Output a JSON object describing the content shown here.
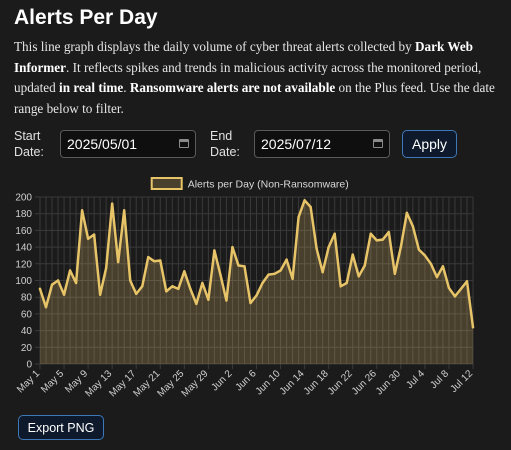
{
  "header": {
    "title": "Alerts Per Day",
    "desc_1": "This line graph displays the daily volume of cyber threat alerts collected by ",
    "desc_bold_1": "Dark Web Informer",
    "desc_2": ". It reflects spikes and trends in malicious activity across the monitored period, updated ",
    "desc_bold_2": "in real time",
    "desc_3": ". ",
    "desc_bold_3": "Ransomware alerts are not available",
    "desc_4": " on the Plus feed. Use the date range below to filter."
  },
  "filters": {
    "start_label_1": "Start",
    "start_label_2": "Date:",
    "start_value": "2025/05/01",
    "end_label_1": "End",
    "end_label_2": "Date:",
    "end_value": "2025/07/12",
    "apply_label": "Apply"
  },
  "export_label": "Export PNG",
  "colors": {
    "background": "#1b1b1b",
    "line": "#e8c468",
    "fill": "rgba(232,196,104,0.22)",
    "grid": "#3a3a3a",
    "button_border": "#3e78b8"
  },
  "icons": [
    "calendar-icon"
  ],
  "chart_data": {
    "type": "line",
    "title": "",
    "legend": "Alerts per Day (Non-Ransomware)",
    "legend_position": "top-center",
    "grid": true,
    "ylim": [
      0,
      200
    ],
    "yticks": [
      0,
      20,
      40,
      60,
      80,
      100,
      120,
      140,
      160,
      180,
      200
    ],
    "start_date": "2025-05-01",
    "tick_labels": [
      "May 1",
      "May 5",
      "May 9",
      "May 13",
      "May 17",
      "May 21",
      "May 25",
      "May 29",
      "Jun 2",
      "Jun 6",
      "Jun 10",
      "Jun 14",
      "Jun 18",
      "Jun 22",
      "Jun 26",
      "Jun 30",
      "Jul 4",
      "Jul 8",
      "Jul 12"
    ],
    "x": [
      "May 1",
      "May 2",
      "May 3",
      "May 4",
      "May 5",
      "May 6",
      "May 7",
      "May 8",
      "May 9",
      "May 10",
      "May 11",
      "May 12",
      "May 13",
      "May 14",
      "May 15",
      "May 16",
      "May 17",
      "May 18",
      "May 19",
      "May 20",
      "May 21",
      "May 22",
      "May 23",
      "May 24",
      "May 25",
      "May 26",
      "May 27",
      "May 28",
      "May 29",
      "May 30",
      "May 31",
      "Jun 1",
      "Jun 2",
      "Jun 3",
      "Jun 4",
      "Jun 5",
      "Jun 6",
      "Jun 7",
      "Jun 8",
      "Jun 9",
      "Jun 10",
      "Jun 11",
      "Jun 12",
      "Jun 13",
      "Jun 14",
      "Jun 15",
      "Jun 16",
      "Jun 17",
      "Jun 18",
      "Jun 19",
      "Jun 20",
      "Jun 21",
      "Jun 22",
      "Jun 23",
      "Jun 24",
      "Jun 25",
      "Jun 26",
      "Jun 27",
      "Jun 28",
      "Jun 29",
      "Jun 30",
      "Jul 1",
      "Jul 2",
      "Jul 3",
      "Jul 4",
      "Jul 5",
      "Jul 6",
      "Jul 7",
      "Jul 8",
      "Jul 9",
      "Jul 10",
      "Jul 11",
      "Jul 12"
    ],
    "series": [
      {
        "name": "Alerts per Day (Non-Ransomware)",
        "values": [
          90,
          68,
          95,
          100,
          83,
          112,
          97,
          184,
          150,
          155,
          83,
          115,
          192,
          122,
          184,
          100,
          84,
          93,
          128,
          123,
          124,
          87,
          93,
          90,
          111,
          90,
          72,
          97,
          77,
          136,
          107,
          76,
          140,
          118,
          117,
          73,
          82,
          97,
          107,
          108,
          112,
          125,
          102,
          176,
          196,
          188,
          138,
          110,
          140,
          156,
          93,
          97,
          131,
          105,
          118,
          156,
          148,
          149,
          158,
          108,
          140,
          181,
          165,
          137,
          130,
          120,
          104,
          117,
          91,
          81,
          90,
          99,
          44
        ]
      }
    ]
  }
}
